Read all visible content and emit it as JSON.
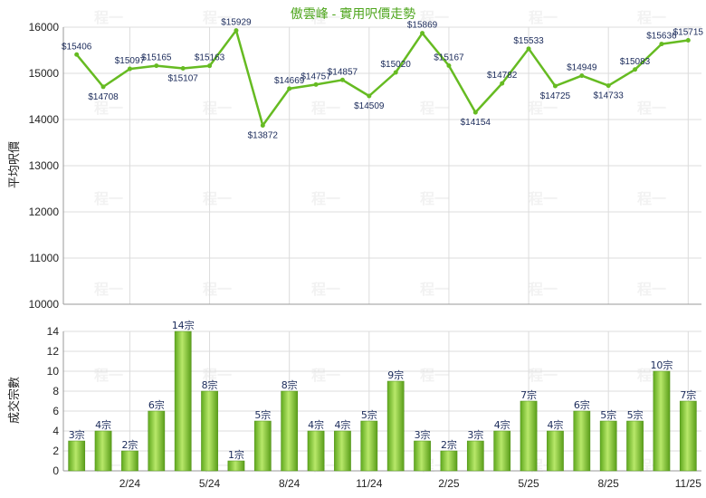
{
  "chart_data": [
    {
      "type": "line",
      "title": "傲雲峰 - 實用呎價走勢",
      "ylabel": "平均呎價",
      "ylim": [
        10000,
        16000
      ],
      "yticks": [
        10000,
        11000,
        12000,
        13000,
        14000,
        15000,
        16000
      ],
      "grid": true,
      "color": "#66bb22",
      "values": [
        15406,
        14708,
        15097,
        15165,
        15107,
        15163,
        15929,
        13872,
        14669,
        14757,
        14857,
        14509,
        15020,
        15869,
        15167,
        14154,
        14782,
        15533,
        14725,
        14949,
        14733,
        15083,
        15636,
        15715
      ],
      "labels": [
        "$15406",
        "$14708",
        "$15097",
        "$15165",
        "$15107",
        "$15163",
        "$15929",
        "$13872",
        "$14669",
        "$14757",
        "$14857",
        "$14509",
        "$15020",
        "$15869",
        "$15167",
        "$14154",
        "$14782",
        "$15533",
        "$14725",
        "$14949",
        "$14733",
        "$15083",
        "$15636",
        "$15715"
      ]
    },
    {
      "type": "bar",
      "ylabel": "成交宗數",
      "ylim": [
        0,
        14
      ],
      "yticks": [
        0,
        2,
        4,
        6,
        8,
        10,
        12,
        14
      ],
      "grid": true,
      "color": "#7cc431",
      "values": [
        3,
        4,
        2,
        6,
        14,
        8,
        1,
        5,
        8,
        4,
        4,
        5,
        9,
        3,
        2,
        3,
        4,
        7,
        4,
        6,
        5,
        5,
        10,
        7
      ],
      "labels": [
        "3宗",
        "4宗",
        "2宗",
        "6宗",
        "14宗",
        "8宗",
        "1宗",
        "5宗",
        "8宗",
        "4宗",
        "4宗",
        "5宗",
        "9宗",
        "3宗",
        "2宗",
        "3宗",
        "4宗",
        "7宗",
        "4宗",
        "6宗",
        "5宗",
        "5宗",
        "10宗",
        "7宗"
      ],
      "xticks": [
        {
          "index": 2,
          "label": "2/24"
        },
        {
          "index": 5,
          "label": "5/24"
        },
        {
          "index": 8,
          "label": "8/24"
        },
        {
          "index": 11,
          "label": "11/24"
        },
        {
          "index": 14,
          "label": "2/25"
        },
        {
          "index": 17,
          "label": "5/25"
        },
        {
          "index": 20,
          "label": "8/25"
        },
        {
          "index": 23,
          "label": "11/25"
        }
      ]
    }
  ]
}
